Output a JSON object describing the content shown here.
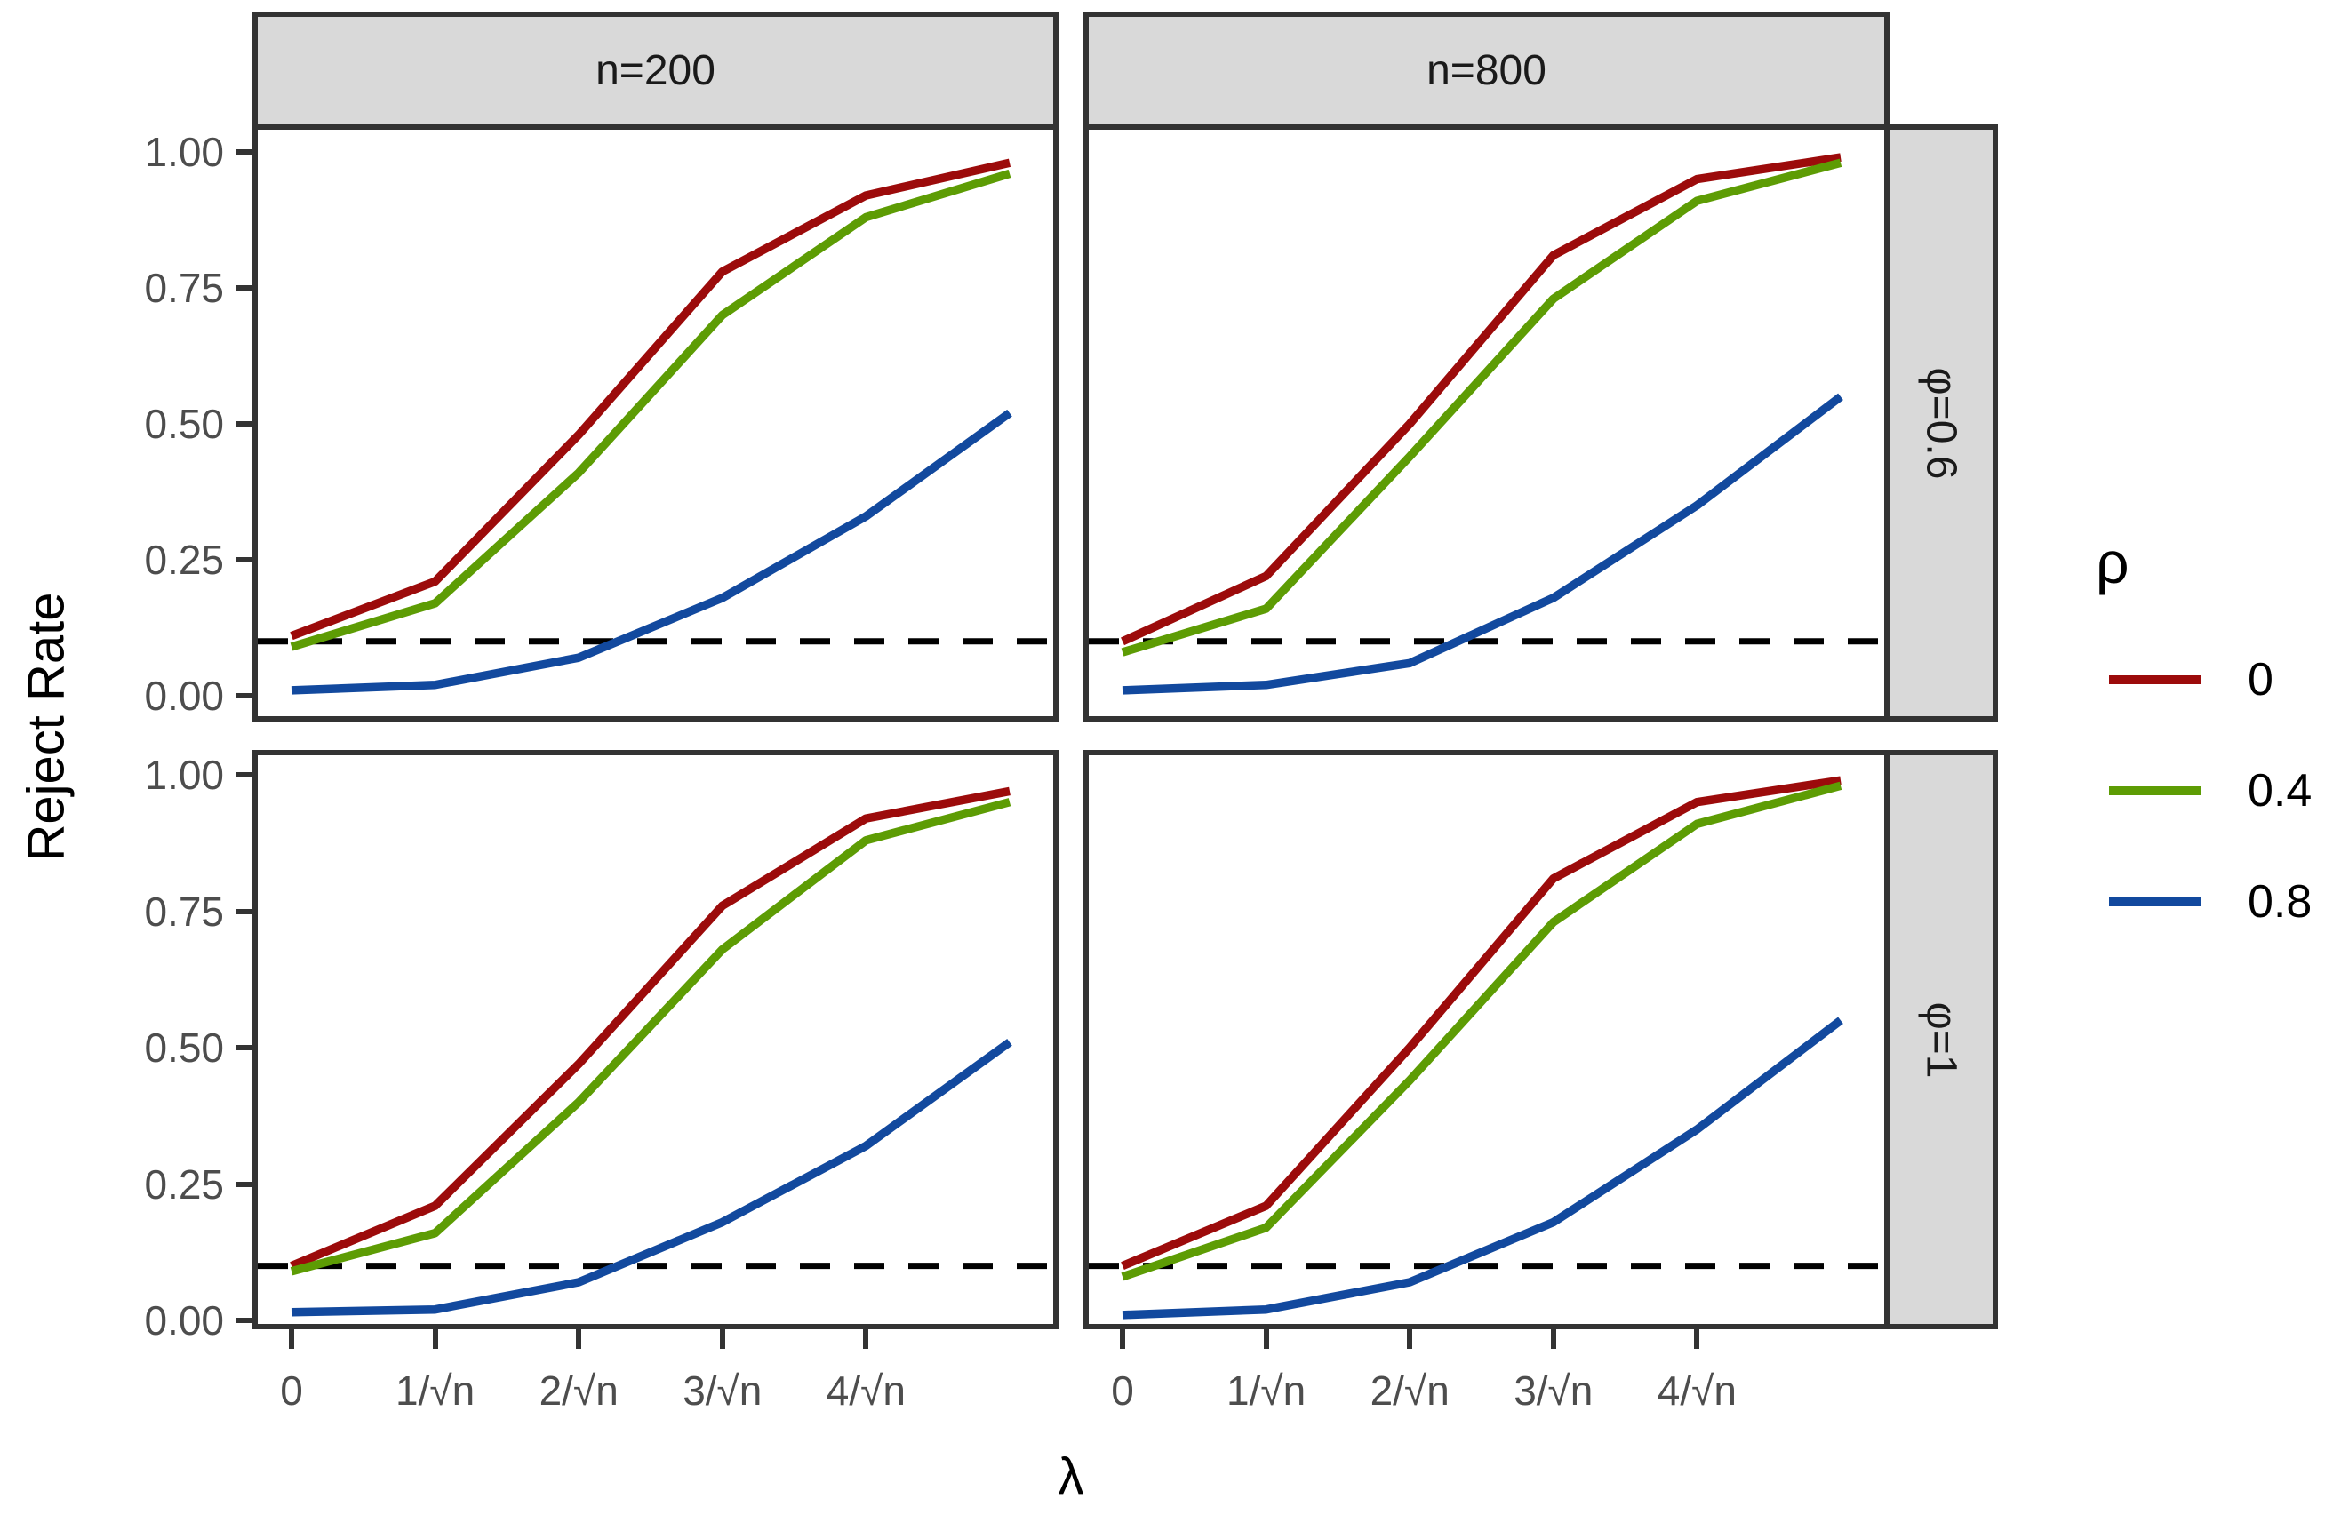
{
  "axes": {
    "x_label": "λ",
    "y_label": "Reject Rate"
  },
  "chart_data": {
    "type": "line",
    "title": "",
    "xlabel": "λ",
    "ylabel": "Reject Rate",
    "x_values": [
      0,
      1,
      2,
      3,
      4,
      5
    ],
    "x_units": "multiples of 1/√n",
    "x_tick_values": [
      0,
      1,
      2,
      3,
      4
    ],
    "x_tick_labels": [
      "0",
      "1/√n",
      "2/√n",
      "3/√n",
      "4/√n"
    ],
    "y_tick_labels": [
      "1.00",
      "0.75",
      "0.50",
      "0.25",
      "0.00"
    ],
    "y_tick_values": [
      1.0,
      0.75,
      0.5,
      0.25,
      0.0
    ],
    "ylim": [
      0,
      1
    ],
    "grid": false,
    "legend_position": "right",
    "reference_line": {
      "y": 0.1,
      "style": "dashed",
      "color": "#000000"
    },
    "col_labels": [
      "n=200",
      "n=800"
    ],
    "row_labels": [
      "φ=0.6",
      "φ=1"
    ],
    "legend": {
      "title": "ρ",
      "entries": [
        {
          "label": "0",
          "color": "#9C0B0B"
        },
        {
          "label": "0.4",
          "color": "#5D9C04"
        },
        {
          "label": "0.8",
          "color": "#12499E"
        }
      ]
    },
    "facets": [
      {
        "col": "n=200",
        "row": "φ=0.6",
        "series": [
          {
            "name": "0",
            "color": "#9C0B0B",
            "values": [
              0.11,
              0.21,
              0.48,
              0.78,
              0.92,
              0.98
            ]
          },
          {
            "name": "0.4",
            "color": "#5D9C04",
            "values": [
              0.09,
              0.17,
              0.41,
              0.7,
              0.88,
              0.96
            ]
          },
          {
            "name": "0.8",
            "color": "#12499E",
            "values": [
              0.01,
              0.02,
              0.07,
              0.18,
              0.33,
              0.52
            ]
          }
        ]
      },
      {
        "col": "n=800",
        "row": "φ=0.6",
        "series": [
          {
            "name": "0",
            "color": "#9C0B0B",
            "values": [
              0.1,
              0.22,
              0.5,
              0.81,
              0.95,
              0.99
            ]
          },
          {
            "name": "0.4",
            "color": "#5D9C04",
            "values": [
              0.08,
              0.16,
              0.44,
              0.73,
              0.91,
              0.98
            ]
          },
          {
            "name": "0.8",
            "color": "#12499E",
            "values": [
              0.01,
              0.02,
              0.06,
              0.18,
              0.35,
              0.55
            ]
          }
        ]
      },
      {
        "col": "n=200",
        "row": "φ=1",
        "series": [
          {
            "name": "0",
            "color": "#9C0B0B",
            "values": [
              0.1,
              0.21,
              0.47,
              0.76,
              0.92,
              0.97
            ]
          },
          {
            "name": "0.4",
            "color": "#5D9C04",
            "values": [
              0.09,
              0.16,
              0.4,
              0.68,
              0.88,
              0.95
            ]
          },
          {
            "name": "0.8",
            "color": "#12499E",
            "values": [
              0.015,
              0.02,
              0.07,
              0.18,
              0.32,
              0.51
            ]
          }
        ]
      },
      {
        "col": "n=800",
        "row": "φ=1",
        "series": [
          {
            "name": "0",
            "color": "#9C0B0B",
            "values": [
              0.1,
              0.21,
              0.5,
              0.81,
              0.95,
              0.99
            ]
          },
          {
            "name": "0.4",
            "color": "#5D9C04",
            "values": [
              0.08,
              0.17,
              0.44,
              0.73,
              0.91,
              0.98
            ]
          },
          {
            "name": "0.8",
            "color": "#12499E",
            "values": [
              0.01,
              0.02,
              0.07,
              0.18,
              0.35,
              0.55
            ]
          }
        ]
      }
    ]
  },
  "style_colors": {
    "strip_background": "#D9D9D9",
    "panel_border": "#333333",
    "tick_text": "#4D4D4D",
    "reference_line": "#000000"
  }
}
